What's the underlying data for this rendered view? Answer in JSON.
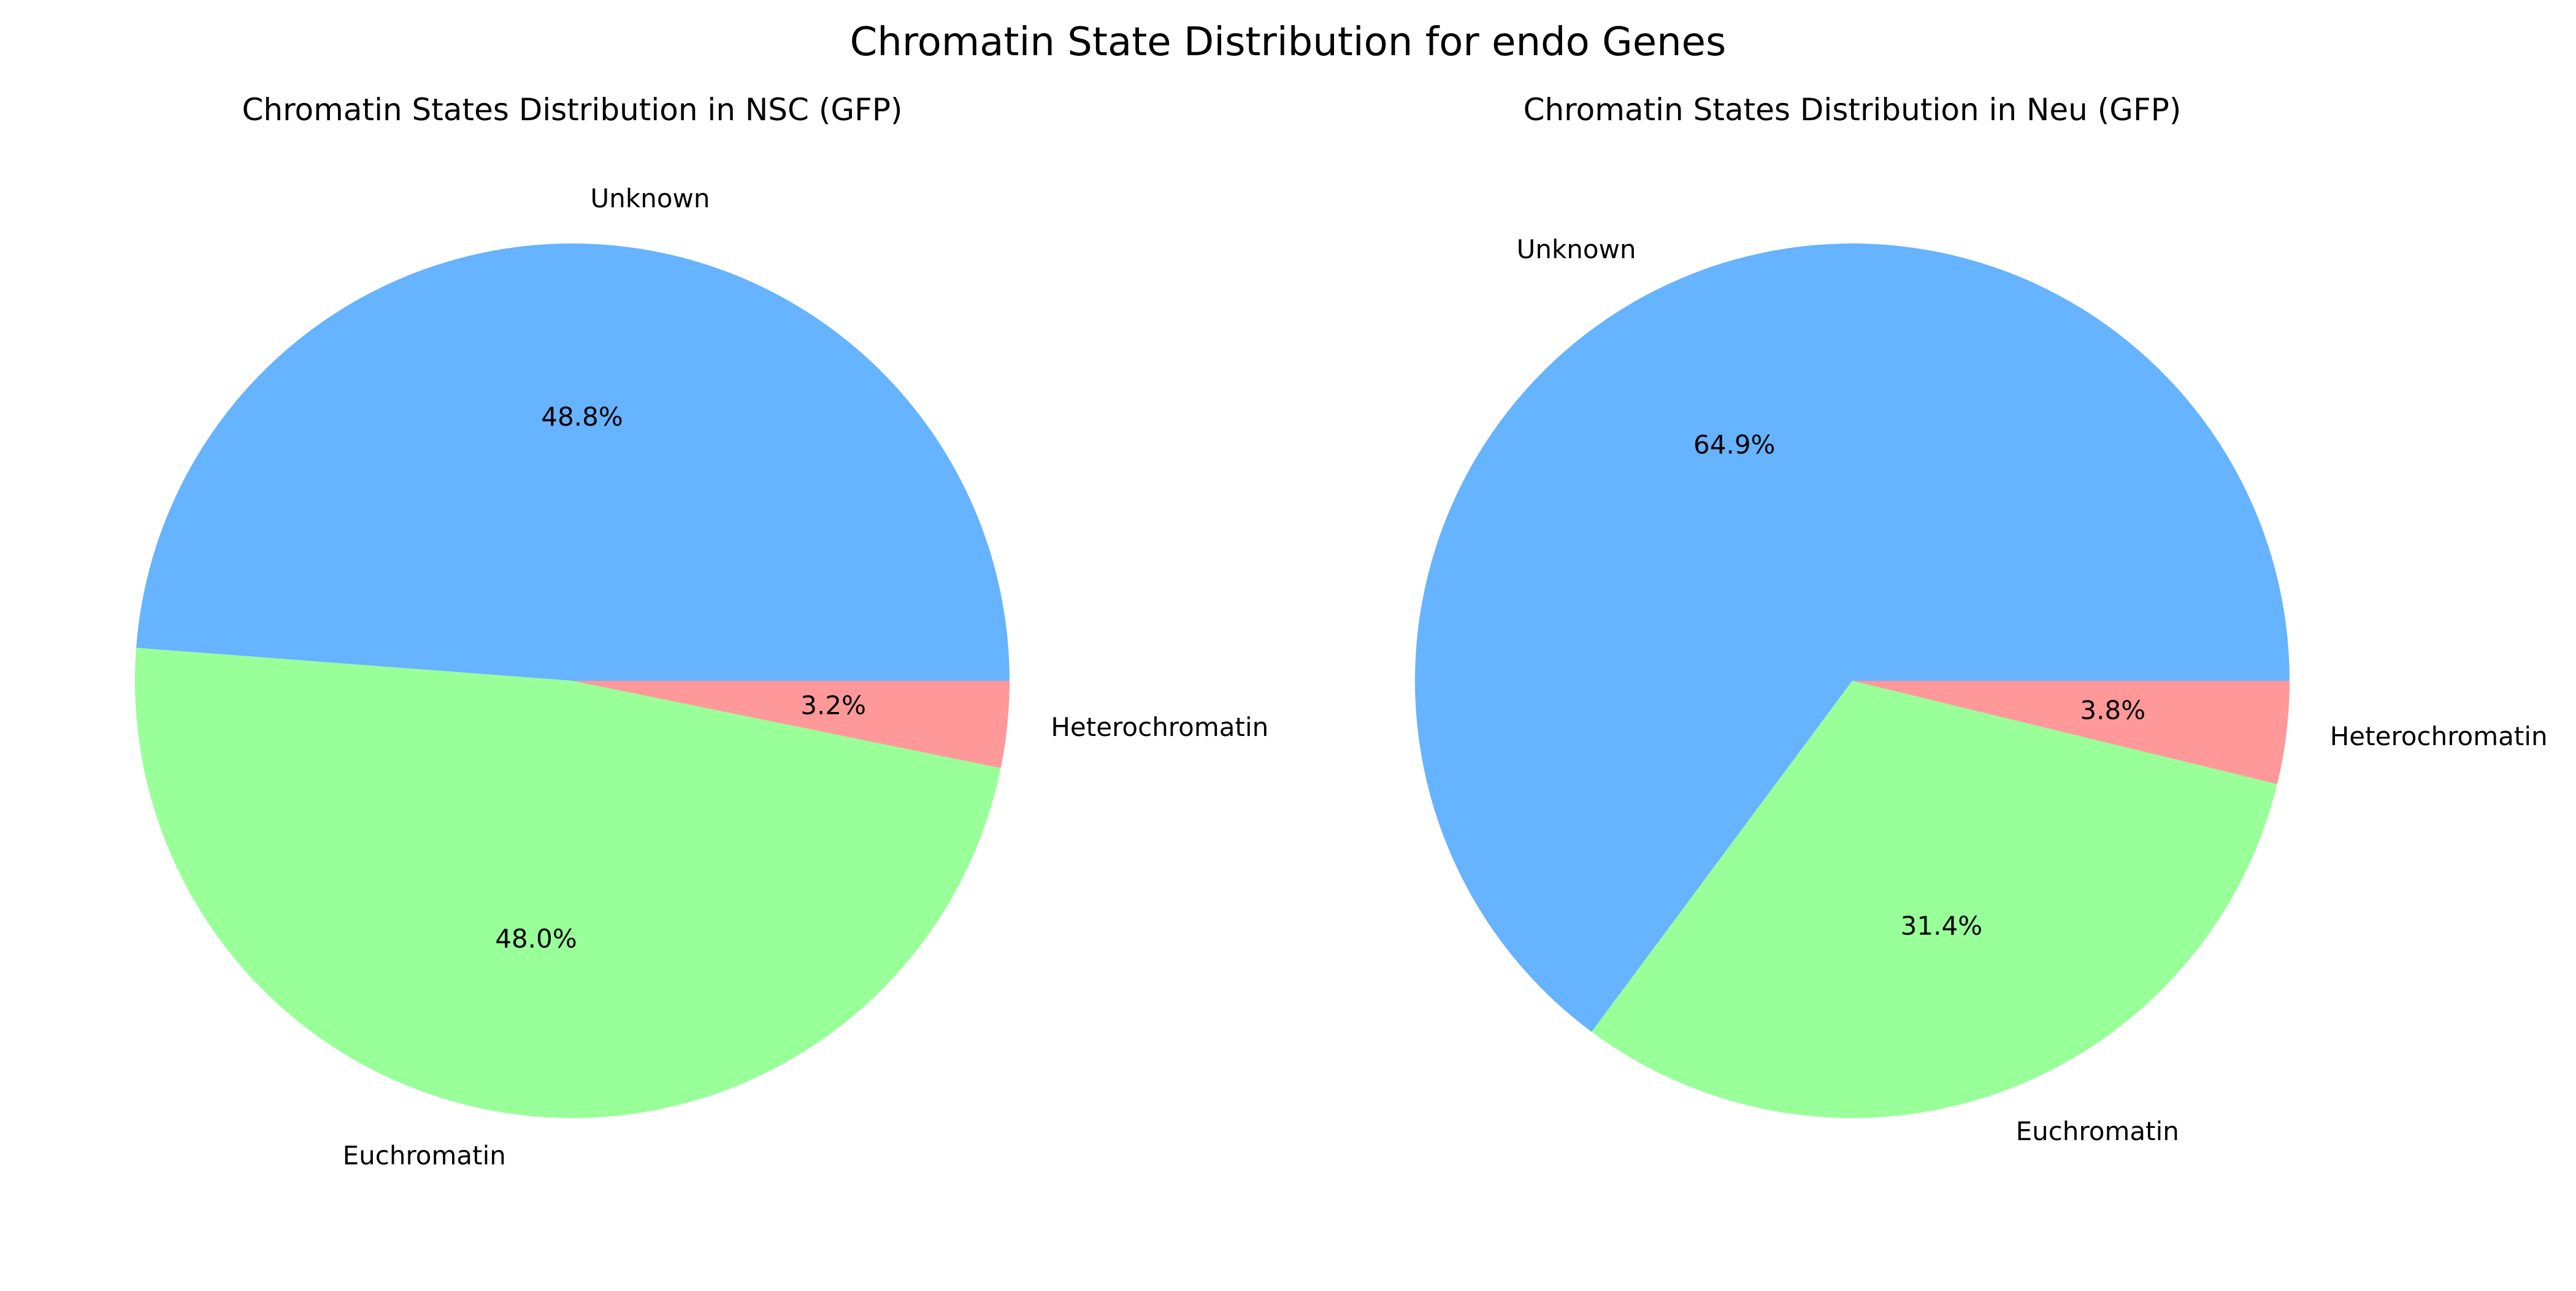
{
  "title": "Chromatin State Distribution for endo Genes",
  "chart_data": [
    {
      "type": "pie",
      "title": "Chromatin States Distribution in NSC (GFP)",
      "categories": [
        "Unknown",
        "Euchromatin",
        "Heterochromatin"
      ],
      "values": [
        48.8,
        48.0,
        3.2
      ],
      "value_labels": [
        "48.8%",
        "48.0%",
        "3.2%"
      ],
      "colors": [
        "#66b3ff",
        "#99ff99",
        "#ff9999"
      ],
      "start_angle_deg": 0,
      "direction": "counterclockwise"
    },
    {
      "type": "pie",
      "title": "Chromatin States Distribution in Neu (GFP)",
      "categories": [
        "Unknown",
        "Euchromatin",
        "Heterochromatin"
      ],
      "values": [
        64.9,
        31.4,
        3.8
      ],
      "value_labels": [
        "64.9%",
        "31.4%",
        "3.8%"
      ],
      "colors": [
        "#66b3ff",
        "#99ff99",
        "#ff9999"
      ],
      "start_angle_deg": 0,
      "direction": "counterclockwise"
    }
  ]
}
